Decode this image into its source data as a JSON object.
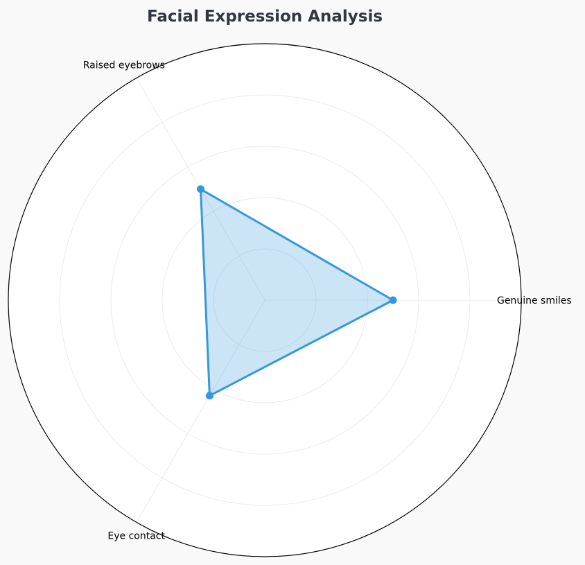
{
  "chart_data": {
    "type": "radar",
    "title": "Facial Expression Analysis",
    "categories": [
      "Genuine smiles",
      "Raised eyebrows",
      "Eye contact"
    ],
    "series": [
      {
        "values": [
          50,
          50,
          43
        ]
      }
    ],
    "rlim": [
      0,
      100
    ],
    "rticks": [
      20,
      40,
      60,
      80,
      100
    ],
    "grid": true,
    "colors": {
      "line": "#3498db",
      "fill": "#3498db",
      "grid": "#ebebeb",
      "frame": "#000000",
      "plot_background": "#ffffff",
      "page_background": "#f9f9f9",
      "title": "#333740"
    }
  }
}
